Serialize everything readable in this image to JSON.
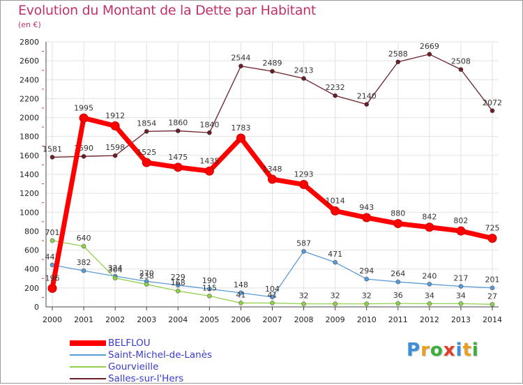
{
  "header": {
    "title": "Evolution du Montant de la Dette par Habitant",
    "unit": "(en €)"
  },
  "brand": {
    "letters": [
      "P",
      "r",
      "o",
      "x",
      "i",
      "t",
      "i"
    ],
    "colors": [
      "#3a8fd8",
      "#e8a020",
      "#3ab03a",
      "#e0402a",
      "#3a8fd8",
      "#e8a020",
      "#3ab03a"
    ]
  },
  "chart_data": {
    "type": "line",
    "title": "Evolution du Montant de la Dette par Habitant",
    "ylabel": "(en €)",
    "ylim": [
      0,
      2800
    ],
    "yticks": [
      0,
      200,
      400,
      600,
      800,
      1000,
      1200,
      1400,
      1600,
      1800,
      2000,
      2200,
      2400,
      2600,
      2800
    ],
    "categories": [
      "2000",
      "2001",
      "2002",
      "2003",
      "2004",
      "2005",
      "2006",
      "2007",
      "2008",
      "2009",
      "2010",
      "2011",
      "2012",
      "2013",
      "2014"
    ],
    "series": [
      {
        "name": "Salles-sur-l'Hers",
        "color": "#6b1f2a",
        "values": [
          1581,
          1590,
          1598,
          1854,
          1860,
          1840,
          2544,
          2489,
          2413,
          2232,
          2140,
          2588,
          2669,
          2508,
          2072
        ]
      },
      {
        "name": "Saint-Michel-de-Lanès",
        "color": "#5b9bd5",
        "values": [
          443,
          382,
          324,
          270,
          229,
          190,
          148,
          104,
          587,
          471,
          294,
          264,
          240,
          217,
          201
        ]
      },
      {
        "name": "Gourvieille",
        "color": "#92d050",
        "values": [
          701,
          640,
          304,
          238,
          168,
          115,
          41,
          41,
          32,
          32,
          32,
          36,
          34,
          34,
          27
        ]
      },
      {
        "name": "BELFLOU",
        "color": "#ff0000",
        "values": [
          196,
          1995,
          1912,
          1525,
          1475,
          1435,
          1783,
          1348,
          1293,
          1014,
          943,
          880,
          842,
          802,
          725
        ]
      }
    ],
    "legend": [
      "BELFLOU",
      "Saint-Michel-de-Lanès",
      "Gourvieille",
      "Salles-sur-l'Hers"
    ],
    "legend_position": "bottom-left"
  }
}
